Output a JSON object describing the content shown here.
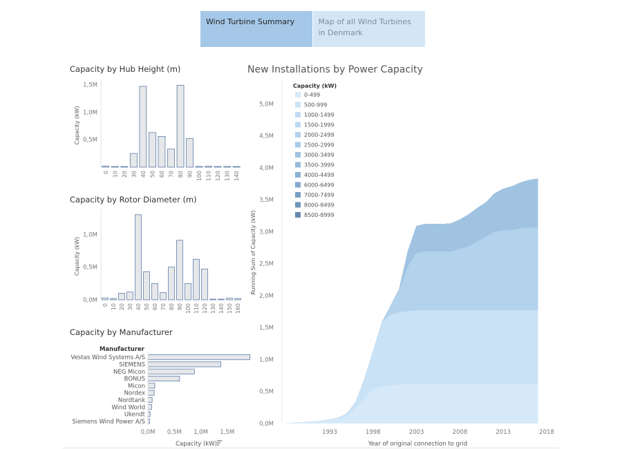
{
  "tabs": [
    {
      "label": "Wind Turbine Summary",
      "active": true
    },
    {
      "label": "Map of all Wind Turbines in Denmark",
      "active": false
    }
  ],
  "colors": {
    "bar_fill": "#e6e7e9",
    "bar_stroke": "#5a7aa8",
    "tab_active": "#a5c8e8",
    "tab_inactive": "#d4e6f5"
  },
  "chart_data": [
    {
      "id": "hub",
      "type": "bar",
      "title": "Capacity by Hub Height (m)",
      "ylabel": "Capacity (kW)",
      "xlabel": "",
      "categories": [
        "0",
        "10",
        "20",
        "30",
        "40",
        "50",
        "60",
        "70",
        "80",
        "90",
        "100",
        "110",
        "120",
        "130",
        "140"
      ],
      "values": [
        20000,
        10000,
        10000,
        250000,
        1470000,
        630000,
        560000,
        330000,
        1490000,
        520000,
        10000,
        15000,
        10000,
        5000,
        0
      ],
      "yticks": [
        {
          "v": 500000,
          "label": "0,5M"
        },
        {
          "v": 1000000,
          "label": "1,0M"
        },
        {
          "v": 1500000,
          "label": "1,5M"
        }
      ],
      "ylim": [
        0,
        1520000
      ]
    },
    {
      "id": "rotor",
      "type": "bar",
      "title": "Capacity by Rotor Diameter (m)",
      "ylabel": "Capacity (kW)",
      "xlabel": "",
      "categories": [
        "0",
        "10",
        "20",
        "30",
        "40",
        "50",
        "60",
        "70",
        "80",
        "90",
        "100",
        "110",
        "120",
        "130",
        "140",
        "150",
        "160"
      ],
      "values": [
        30000,
        20000,
        100000,
        120000,
        1300000,
        430000,
        250000,
        110000,
        500000,
        910000,
        250000,
        620000,
        470000,
        5000,
        0,
        25000,
        20000
      ],
      "yticks": [
        {
          "v": 0,
          "label": "0,0M"
        },
        {
          "v": 500000,
          "label": "0,5M"
        },
        {
          "v": 1000000,
          "label": "1,0M"
        }
      ],
      "ylim": [
        0,
        1330000
      ]
    },
    {
      "id": "manufacturer",
      "type": "bar",
      "orientation": "horizontal",
      "title": "Capacity by Manufacturer",
      "header": "Manufacturer",
      "xlabel": "Capacity (kW)",
      "categories": [
        "Vestas Wind Systems A/S",
        "SIEMENS",
        "NEG Micon",
        "BONUS",
        "Micon",
        "Nordex",
        "Nordtank",
        "Wind World",
        "Ukendt",
        "Siemens Wind Power A/S"
      ],
      "values": [
        1930000,
        1380000,
        880000,
        600000,
        130000,
        120000,
        80000,
        70000,
        40000,
        30000
      ],
      "xticks": [
        {
          "v": 0,
          "label": "0,0M"
        },
        {
          "v": 500000,
          "label": "0,5M"
        },
        {
          "v": 1000000,
          "label": "1,0M"
        },
        {
          "v": 1500000,
          "label": "1,5M"
        }
      ],
      "xlim": [
        0,
        2000000
      ]
    },
    {
      "id": "installations",
      "type": "area",
      "stacked": true,
      "title": "New Installations by Power Capacity",
      "xlabel": "Year of original connection to grid",
      "ylabel": "Running Sum of Capacity (kW)",
      "legend_title": "Capacity (kW)",
      "legend_position": "top-left",
      "xticks": [
        1993,
        1998,
        2003,
        2008,
        2013,
        2018
      ],
      "xlim": [
        1987.5,
        2018
      ],
      "yticks": [
        {
          "v": 0,
          "label": "0,0M"
        },
        {
          "v": 500000,
          "label": "0,5M"
        },
        {
          "v": 1000000,
          "label": "1,0M"
        },
        {
          "v": 1500000,
          "label": "1,5M"
        },
        {
          "v": 2000000,
          "label": "2,0M"
        },
        {
          "v": 2500000,
          "label": "2,5M"
        },
        {
          "v": 3000000,
          "label": "3,0M"
        },
        {
          "v": 3500000,
          "label": "3,5M"
        },
        {
          "v": 4000000,
          "label": "4,0M"
        },
        {
          "v": 4500000,
          "label": "4,5M"
        },
        {
          "v": 5000000,
          "label": "5,0M"
        }
      ],
      "ylim": [
        0,
        5350000
      ],
      "x": [
        1988,
        1990,
        1992,
        1994,
        1995,
        1996,
        1997,
        1998,
        1999,
        2000,
        2001,
        2002,
        2003,
        2004,
        2005,
        2006,
        2007,
        2008,
        2009,
        2010,
        2011,
        2012,
        2013,
        2014,
        2015,
        2016,
        2017
      ],
      "series": [
        {
          "name": "0-499",
          "color": "#d6e9f8",
          "values": [
            0,
            20000,
            40000,
            70000,
            120000,
            240000,
            400000,
            540000,
            580000,
            600000,
            610000,
            615000,
            620000,
            620000,
            620000,
            620000,
            620000,
            620000,
            620000,
            620000,
            620000,
            620000,
            620000,
            620000,
            620000,
            620000,
            620000
          ]
        },
        {
          "name": "500-999",
          "color": "#c9e2f6",
          "values": [
            0,
            0,
            0,
            20000,
            40000,
            100000,
            300000,
            600000,
            1000000,
            1100000,
            1130000,
            1140000,
            1150000,
            1150000,
            1150000,
            1150000,
            1150000,
            1150000,
            1150000,
            1150000,
            1150000,
            1150000,
            1150000,
            1150000,
            1150000,
            1150000,
            1150000
          ]
        },
        {
          "name": "1000-1499",
          "color": "#c2ddf3",
          "values": [
            0,
            0,
            0,
            0,
            0,
            0,
            0,
            0,
            0,
            0,
            0,
            0,
            0,
            0,
            0,
            0,
            0,
            0,
            0,
            0,
            0,
            0,
            0,
            0,
            0,
            0,
            0
          ]
        },
        {
          "name": "1500-1999",
          "color": "#bcd9f0",
          "values": [
            0,
            0,
            0,
            0,
            0,
            0,
            0,
            0,
            0,
            0,
            0,
            0,
            0,
            0,
            0,
            0,
            0,
            0,
            0,
            0,
            0,
            0,
            0,
            0,
            0,
            0,
            0
          ]
        },
        {
          "name": "2000-2499",
          "color": "#b3d2ec",
          "values": [
            0,
            0,
            0,
            0,
            0,
            0,
            0,
            0,
            0,
            140000,
            340000,
            700000,
            900000,
            920000,
            920000,
            920000,
            920000,
            960000,
            1000000,
            1080000,
            1150000,
            1230000,
            1250000,
            1260000,
            1280000,
            1290000,
            1300000
          ]
        },
        {
          "name": "2500-2999",
          "color": "#a9cbe7",
          "values": [
            0,
            0,
            0,
            0,
            0,
            0,
            0,
            0,
            0,
            0,
            0,
            0,
            0,
            0,
            0,
            0,
            0,
            0,
            0,
            0,
            0,
            0,
            0,
            0,
            0,
            0,
            0
          ]
        },
        {
          "name": "3000-3499",
          "color": "#a0c3e2",
          "values": [
            0,
            0,
            0,
            0,
            0,
            0,
            0,
            0,
            0,
            0,
            20000,
            240000,
            420000,
            430000,
            430000,
            430000,
            440000,
            460000,
            500000,
            520000,
            540000,
            600000,
            650000,
            680000,
            720000,
            750000,
            760000
          ]
        },
        {
          "name": "3500-3999",
          "color": "#96bbdb",
          "values": [
            0,
            0,
            0,
            0,
            0,
            0,
            0,
            0,
            0,
            0,
            0,
            0,
            0,
            0,
            0,
            0,
            0,
            0,
            0,
            0,
            0,
            0,
            0,
            0,
            0,
            0,
            0
          ]
        },
        {
          "name": "4000-4499",
          "color": "#8bb1d4",
          "values": [
            0,
            0,
            0,
            0,
            0,
            0,
            0,
            0,
            0,
            0,
            0,
            0,
            0,
            0,
            0,
            0,
            0,
            0,
            0,
            0,
            0,
            0,
            0,
            0,
            0,
            0,
            0
          ]
        },
        {
          "name": "6000-6499",
          "color": "#82a8cc",
          "values": [
            0,
            0,
            0,
            0,
            0,
            0,
            0,
            0,
            0,
            0,
            0,
            0,
            0,
            0,
            0,
            0,
            0,
            0,
            0,
            0,
            0,
            0,
            0,
            0,
            0,
            0,
            0
          ]
        },
        {
          "name": "7000-7499",
          "color": "#789fc4",
          "values": [
            0,
            0,
            0,
            0,
            0,
            0,
            0,
            0,
            0,
            0,
            0,
            0,
            0,
            0,
            0,
            0,
            0,
            0,
            0,
            0,
            0,
            0,
            0,
            0,
            0,
            0,
            0
          ]
        },
        {
          "name": "8000-8499",
          "color": "#6e95bb",
          "values": [
            0,
            0,
            0,
            0,
            0,
            0,
            0,
            0,
            0,
            0,
            0,
            0,
            0,
            0,
            0,
            0,
            0,
            0,
            0,
            0,
            0,
            0,
            0,
            0,
            0,
            0,
            0
          ]
        },
        {
          "name": "8500-8999",
          "color": "#6689b0",
          "values": [
            0,
            0,
            0,
            0,
            0,
            0,
            0,
            0,
            0,
            0,
            0,
            0,
            0,
            0,
            0,
            0,
            0,
            0,
            0,
            0,
            0,
            0,
            0,
            0,
            0,
            0,
            0
          ]
        }
      ]
    }
  ]
}
